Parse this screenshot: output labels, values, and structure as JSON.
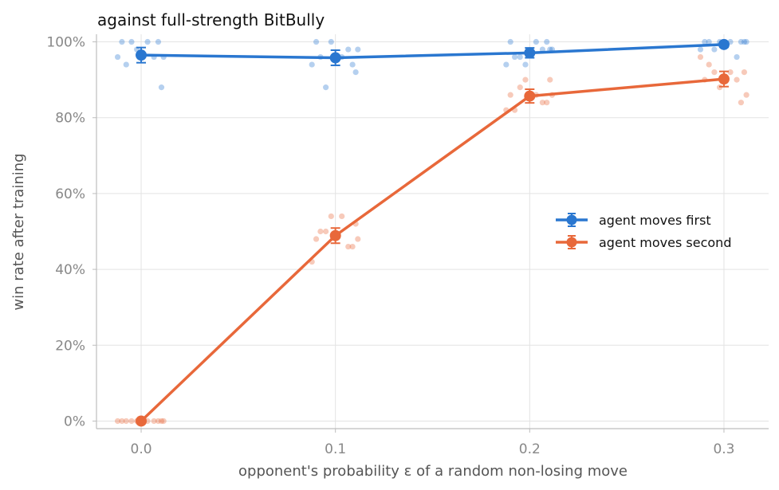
{
  "chart_data": {
    "type": "line",
    "title": "against full-strength BitBully",
    "xlabel": "opponent's probability ε of a random non-losing move",
    "ylabel": "win rate after training",
    "x": [
      0.0,
      0.1,
      0.2,
      0.3
    ],
    "x_tick_labels": [
      "0.0",
      "0.1",
      "0.2",
      "0.3"
    ],
    "xlim": [
      -0.023,
      0.323
    ],
    "ylim": [
      -0.02,
      1.02
    ],
    "y_ticks": [
      0,
      0.2,
      0.4,
      0.6,
      0.8,
      1.0
    ],
    "y_tick_labels": [
      "0%",
      "20%",
      "40%",
      "60%",
      "80%",
      "100%"
    ],
    "grid": true,
    "legend": "center-right",
    "series": [
      {
        "name": "agent moves first",
        "color": "#2a77d0",
        "values": [
          0.965,
          0.958,
          0.971,
          0.993
        ],
        "error": [
          0.02,
          0.02,
          0.013,
          0.007
        ],
        "runs": [
          [
            1.0,
            1.0,
            1.0,
            0.96,
            0.96,
            1.0,
            0.98,
            0.96,
            0.94,
            0.88
          ],
          [
            1.0,
            0.94,
            0.88,
            0.98,
            0.94,
            0.96,
            1.0,
            0.98,
            0.96,
            0.92
          ],
          [
            1.0,
            1.0,
            0.96,
            0.98,
            0.94,
            1.0,
            0.94,
            0.98,
            0.96,
            0.98
          ],
          [
            1.0,
            1.0,
            0.98,
            1.0,
            0.98,
            1.0,
            1.0,
            0.96,
            1.0,
            1.0
          ]
        ]
      },
      {
        "name": "agent moves second",
        "color": "#e8683a",
        "values": [
          0.0,
          0.489,
          0.857,
          0.902
        ],
        "error": [
          0.0,
          0.02,
          0.018,
          0.02
        ],
        "runs": [
          [
            0.0,
            0.0,
            0.0,
            0.0,
            0.0,
            0.0,
            0.0,
            0.0,
            0.0,
            0.0
          ],
          [
            0.48,
            0.42,
            0.54,
            0.54,
            0.46,
            0.5,
            0.52,
            0.48,
            0.46,
            0.5
          ],
          [
            0.86,
            0.82,
            0.86,
            0.9,
            0.84,
            0.82,
            0.9,
            0.86,
            0.84,
            0.88
          ],
          [
            0.86,
            0.96,
            0.92,
            0.88,
            0.9,
            0.94,
            0.92,
            0.9,
            0.84,
            0.92
          ]
        ]
      }
    ]
  }
}
